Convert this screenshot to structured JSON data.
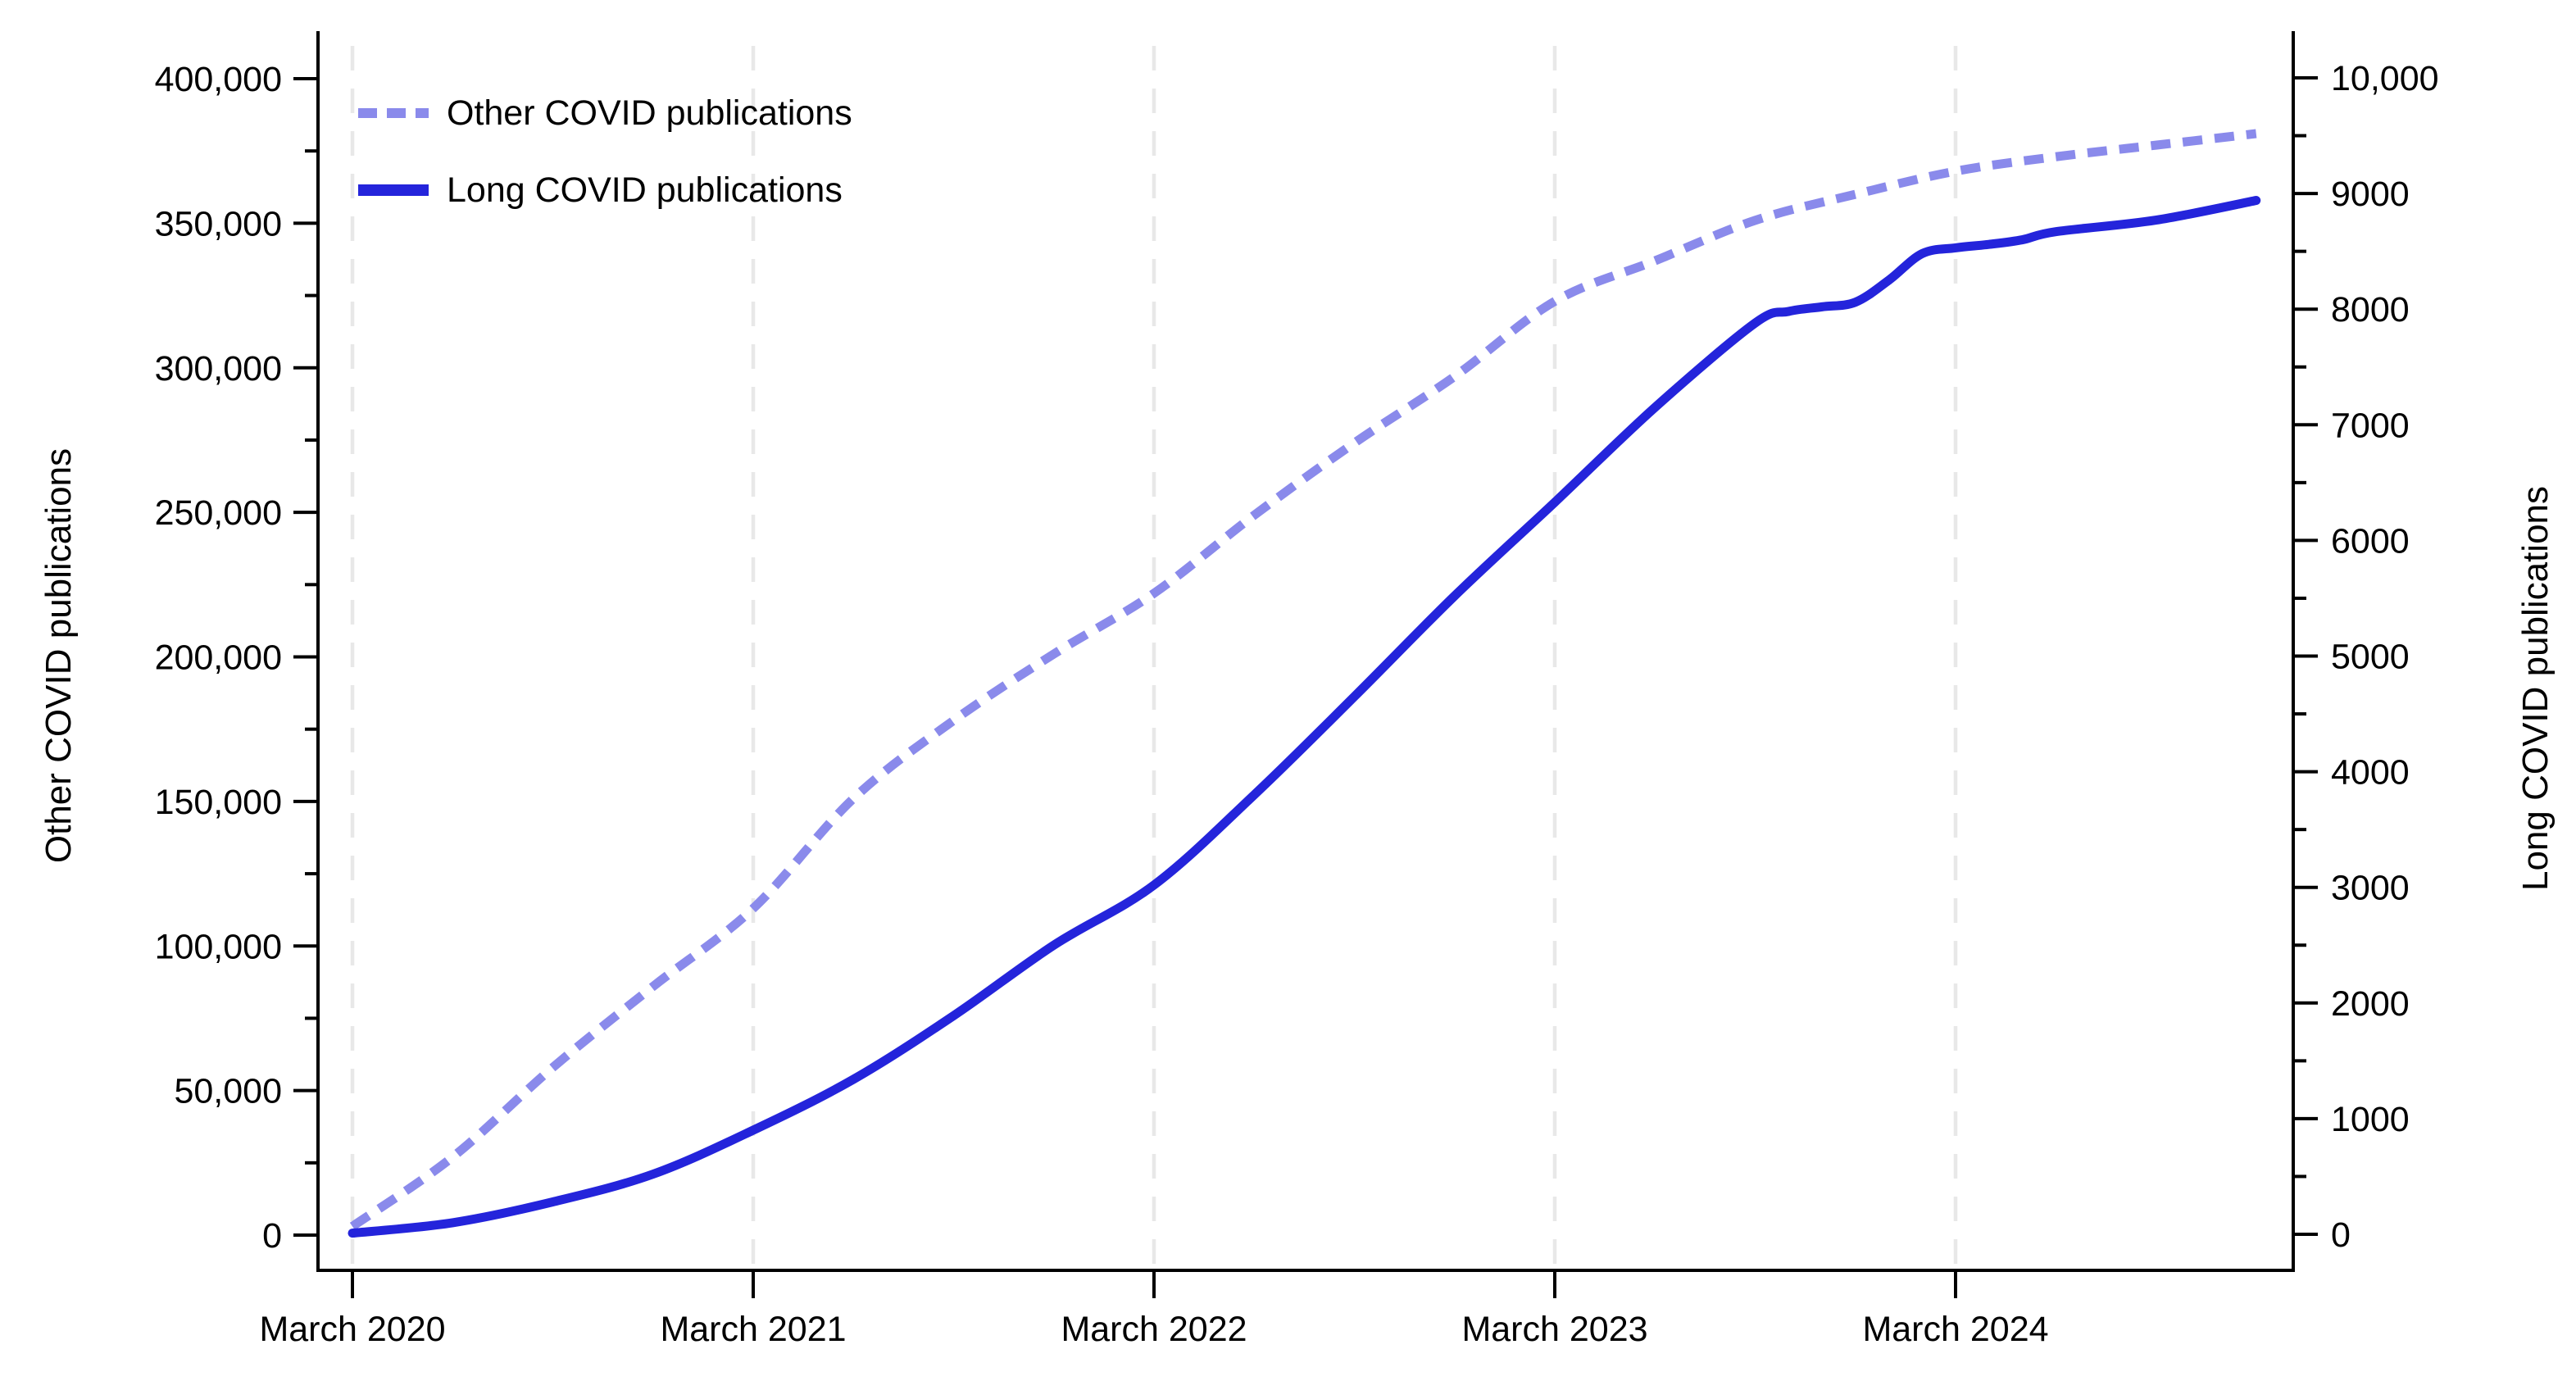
{
  "page": {
    "background": "#ffffff"
  },
  "legend": {
    "position": "top-left-inside",
    "items": [
      {
        "label": "Other COVID publications",
        "style": "dotted",
        "color": "#8a8aeb"
      },
      {
        "label": "Long COVID publications",
        "style": "solid",
        "color": "#2424db"
      }
    ]
  },
  "axes": {
    "left_title": "Other COVID publications",
    "right_title": "Long COVID publications",
    "x_tick_labels": [
      "March 2020",
      "March 2021",
      "March 2022",
      "March 2023",
      "March 2024"
    ]
  },
  "colors": {
    "other_series": "#8a8aeb",
    "long_series": "#2424db",
    "gridline": "#e8e8e8",
    "axis": "#000000"
  },
  "chart_data": {
    "type": "line",
    "title": "",
    "xlabel": "",
    "x": {
      "start_month": "2020-03",
      "end_month": "2024-12",
      "tick_months": [
        "2020-03",
        "2021-03",
        "2022-03",
        "2023-03",
        "2024-03"
      ],
      "tick_labels": [
        "March 2020",
        "March 2021",
        "March 2022",
        "March 2023",
        "March 2024"
      ],
      "gridlines": "vertical dashed light gray at each tick"
    },
    "y_left": {
      "label": "Other COVID publications",
      "range": [
        0,
        400000
      ],
      "major_step": 50000,
      "minor_step": 25000,
      "tick_labels": [
        "0",
        "50,000",
        "100,000",
        "150,000",
        "200,000",
        "250,000",
        "300,000",
        "350,000",
        "400,000"
      ]
    },
    "y_right": {
      "label": "Long COVID publications",
      "range": [
        0,
        10000
      ],
      "major_step": 1000,
      "minor_step": 500,
      "tick_labels": [
        "0",
        "1000",
        "2000",
        "3000",
        "4000",
        "5000",
        "6000",
        "7000",
        "8000",
        "9000",
        "10,000"
      ]
    },
    "grid": {
      "horizontal": false,
      "vertical": true
    },
    "legend_position": "top-left-inside",
    "series": [
      {
        "name": "Other COVID publications",
        "axis": "left",
        "line_style": "dotted",
        "color": "#8a8aeb",
        "points": [
          {
            "month": "2020-03",
            "value": 3000
          },
          {
            "month": "2020-06",
            "value": 27000
          },
          {
            "month": "2020-09",
            "value": 58000
          },
          {
            "month": "2020-12",
            "value": 86000
          },
          {
            "month": "2021-03",
            "value": 113000
          },
          {
            "month": "2021-06",
            "value": 151000
          },
          {
            "month": "2021-09",
            "value": 178000
          },
          {
            "month": "2021-12",
            "value": 201000
          },
          {
            "month": "2022-03",
            "value": 222000
          },
          {
            "month": "2022-06",
            "value": 249000
          },
          {
            "month": "2022-09",
            "value": 274000
          },
          {
            "month": "2022-12",
            "value": 297000
          },
          {
            "month": "2023-03",
            "value": 323000
          },
          {
            "month": "2023-06",
            "value": 337000
          },
          {
            "month": "2023-09",
            "value": 351000
          },
          {
            "month": "2023-12",
            "value": 360000
          },
          {
            "month": "2024-03",
            "value": 368000
          },
          {
            "month": "2024-06",
            "value": 373000
          },
          {
            "month": "2024-09",
            "value": 377000
          },
          {
            "month": "2024-12",
            "value": 381000
          }
        ]
      },
      {
        "name": "Long COVID publications",
        "axis": "right",
        "line_style": "solid",
        "color": "#2424db",
        "points": [
          {
            "month": "2020-03",
            "value": 10
          },
          {
            "month": "2020-06",
            "value": 100
          },
          {
            "month": "2020-09",
            "value": 280
          },
          {
            "month": "2020-12",
            "value": 520
          },
          {
            "month": "2021-03",
            "value": 900
          },
          {
            "month": "2021-06",
            "value": 1340
          },
          {
            "month": "2021-09",
            "value": 1890
          },
          {
            "month": "2021-12",
            "value": 2500
          },
          {
            "month": "2022-03",
            "value": 3020
          },
          {
            "month": "2022-06",
            "value": 3800
          },
          {
            "month": "2022-09",
            "value": 4650
          },
          {
            "month": "2022-12",
            "value": 5520
          },
          {
            "month": "2023-03",
            "value": 6330
          },
          {
            "month": "2023-06",
            "value": 7150
          },
          {
            "month": "2023-09",
            "value": 7880
          },
          {
            "month": "2023-10",
            "value": 7980
          },
          {
            "month": "2023-11",
            "value": 8020
          },
          {
            "month": "2023-12",
            "value": 8060
          },
          {
            "month": "2024-01",
            "value": 8250
          },
          {
            "month": "2024-02",
            "value": 8480
          },
          {
            "month": "2024-03",
            "value": 8530
          },
          {
            "month": "2024-04",
            "value": 8560
          },
          {
            "month": "2024-05",
            "value": 8600
          },
          {
            "month": "2024-06",
            "value": 8670
          },
          {
            "month": "2024-09",
            "value": 8770
          },
          {
            "month": "2024-12",
            "value": 8940
          }
        ]
      }
    ]
  }
}
